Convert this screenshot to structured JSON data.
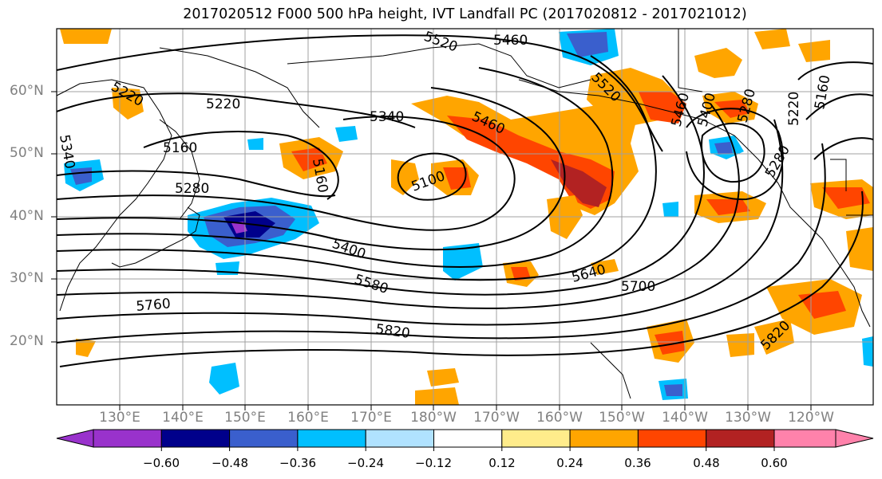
{
  "title": "2017020512 F000 500 hPa height, IVT Landfall PC (2017020812 - 2017021012)",
  "lat_labels": [
    "60°N",
    "50°N",
    "40°N",
    "30°N",
    "20°N"
  ],
  "lon_labels": [
    "130°E",
    "140°E",
    "150°E",
    "160°E",
    "170°E",
    "180°W",
    "170°W",
    "160°W",
    "150°W",
    "140°W",
    "130°W",
    "120°W"
  ],
  "contour_labels": [
    "5220",
    "5220",
    "5160",
    "5280",
    "5340",
    "5460",
    "5160",
    "5100",
    "5400",
    "5580",
    "5640",
    "5700",
    "5760",
    "5820",
    "5460",
    "5520",
    "5460",
    "5400",
    "5280",
    "5220",
    "5280",
    "5160",
    "5340",
    "5520",
    "5820"
  ],
  "colorbar": {
    "ticks": [
      "−0.60",
      "−0.48",
      "−0.36",
      "−0.24",
      "−0.12",
      "0.12",
      "0.24",
      "0.36",
      "0.48",
      "0.60"
    ],
    "colors": [
      "#9932cc",
      "#00008b",
      "#3a5fcd",
      "#00bfff",
      "#b0e2ff",
      "#ffffff",
      "#ffec8b",
      "#ffa500",
      "#ff4500",
      "#b22222",
      "#ff82ab"
    ]
  },
  "colors": {
    "contour": "#000000",
    "grid": "#a0a0a0",
    "coast": "#000000",
    "axis_labels": "#808080"
  }
}
